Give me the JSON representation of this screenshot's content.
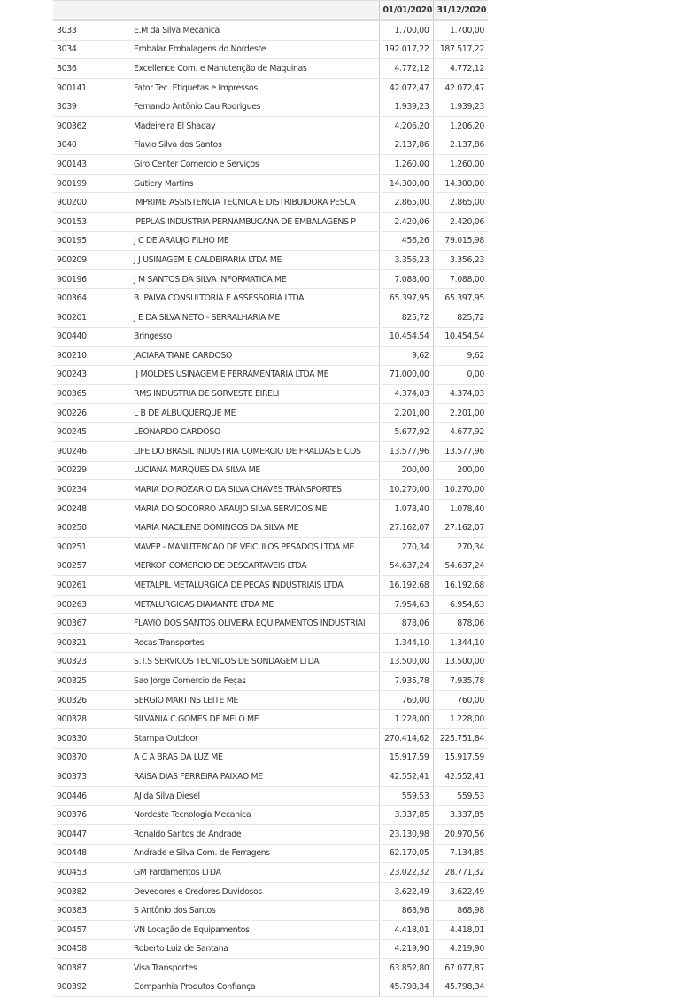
{
  "table": {
    "headers": [
      "",
      "",
      "01/01/2020",
      "31/12/2020"
    ],
    "rows": [
      [
        "3033",
        "E.M da Silva Mecanica",
        "1.700,00",
        "1.700,00"
      ],
      [
        "3034",
        "Embalar Embalagens do Nordeste",
        "192.017,22",
        "187.517,22"
      ],
      [
        "3036",
        "Excellence Com. e Manutenção de Maquinas",
        "4.772,12",
        "4.772,12"
      ],
      [
        "900141",
        "Fator Tec. Etiquetas e Impressos",
        "42.072,47",
        "42.072,47"
      ],
      [
        "3039",
        "Fernando Antônio Cau Rodrigues",
        "1.939,23",
        "1.939,23"
      ],
      [
        "900362",
        "Madeireira El Shaday",
        "4.206,20",
        "1.206,20"
      ],
      [
        "3040",
        "Flavio Silva dos Santos",
        "2.137,86",
        "2.137,86"
      ],
      [
        "900143",
        "Giro Center Comercio e Serviços",
        "1.260,00",
        "1.260,00"
      ],
      [
        "900199",
        "Gutiery Martins",
        "14.300,00",
        "14.300,00"
      ],
      [
        "900200",
        "IMPRIME ASSISTENCIA TECNICA E DISTRIBUIDORA PESCA",
        "2.865,00",
        "2.865,00"
      ],
      [
        "900153",
        "IPEPLAS INDUSTRIA PERNAMBUCANA DE EMBALAGENS P",
        "2.420,06",
        "2.420,06"
      ],
      [
        "900195",
        "J C DE ARAUJO FILHO ME",
        "456,26",
        "79.015,98"
      ],
      [
        "900209",
        "J J USINAGEM E CALDEIRARIA LTDA ME",
        "3.356,23",
        "3.356,23"
      ],
      [
        "900196",
        "J M SANTOS DA SILVA INFORMATICA ME",
        "7.088,00",
        "7.088,00"
      ],
      [
        "900364",
        "B. PAIVA CONSULTORIA E ASSESSORIA LTDA",
        "65.397,95",
        "65.397,95"
      ],
      [
        "900201",
        "J E DA SILVA NETO - SERRALHARIA ME",
        "825,72",
        "825,72"
      ],
      [
        "900440",
        "Bringesso",
        "10.454,54",
        "10.454,54"
      ],
      [
        "900210",
        "JACIARA TIANE CARDOSO",
        "9,62",
        "9,62"
      ],
      [
        "900243",
        "JJ MOLDES USINAGEM E FERRAMENTARIA LTDA ME",
        "71.000,00",
        "0,00"
      ],
      [
        "900365",
        "RMS INDUSTRIA DE SORVESTE EIRELI",
        "4.374,03",
        "4.374,03"
      ],
      [
        "900226",
        "L B DE ALBUQUERQUE ME",
        "2.201,00",
        "2.201,00"
      ],
      [
        "900245",
        "LEONARDO CARDOSO",
        "5.677,92",
        "4.677,92"
      ],
      [
        "900246",
        "LIFE DO BRASIL INDUSTRIA COMERCIO DE FRALDAS E COS",
        "13.577,96",
        "13.577,96"
      ],
      [
        "900229",
        "LUCIANA MARQUES DA SILVA ME",
        "200,00",
        "200,00"
      ],
      [
        "900234",
        "MARIA DO ROZARIO DA SILVA CHAVES TRANSPORTES",
        "10.270,00",
        "10.270,00"
      ],
      [
        "900248",
        "MARIA DO SOCORRO ARAUJO SILVA SERVICOS ME",
        "1.078,40",
        "1.078,40"
      ],
      [
        "900250",
        "MARIA MACILENE DOMINGOS DA SILVA ME",
        "27.162,07",
        "27.162,07"
      ],
      [
        "900251",
        "MAVEP - MANUTENCAO DE VEICULOS PESADOS LTDA ME",
        "270,34",
        "270,34"
      ],
      [
        "900257",
        "MERKOP COMERCIO DE DESCARTAVEIS LTDA",
        "54.637,24",
        "54.637,24"
      ],
      [
        "900261",
        "METALPIL METALURGICA DE PECAS INDUSTRIAIS LTDA",
        "16.192,68",
        "16.192,68"
      ],
      [
        "900263",
        "METALURGICAS DIAMANTE LTDA ME",
        "7.954,63",
        "6.954,63"
      ],
      [
        "900367",
        "FLAVIO DOS SANTOS OLIVEIRA EQUIPAMENTOS INDUSTRIAI",
        "878,06",
        "878,06"
      ],
      [
        "900321",
        "Rocas Transportes",
        "1.344,10",
        "1.344,10"
      ],
      [
        "900323",
        "S.T.S SERVICOS TECNICOS DE SONDAGEM LTDA",
        "13.500,00",
        "13.500,00"
      ],
      [
        "900325",
        "Sao Jorge Comercio de Peças",
        "7.935,78",
        "7.935,78"
      ],
      [
        "900326",
        "SERGIO MARTINS LEITE ME",
        "760,00",
        "760,00"
      ],
      [
        "900328",
        "SILVANIA C.GOMES DE MELO ME",
        "1.228,00",
        "1.228,00"
      ],
      [
        "900330",
        "Stampa Outdoor",
        "270.414,62",
        "225.751,84"
      ],
      [
        "900370",
        "A C A BRAS DA LUZ ME",
        "15.917,59",
        "15.917,59"
      ],
      [
        "900373",
        "RAISA DIAS FERREIRA PAIXAO ME",
        "42.552,41",
        "42.552,41"
      ],
      [
        "900446",
        "AJ da Silva Diesel",
        "559,53",
        "559,53"
      ],
      [
        "900376",
        "Nordeste Tecnologia Mecanica",
        "3.337,85",
        "3.337,85"
      ],
      [
        "900447",
        "Ronaldo Santos de Andrade",
        "23.130,98",
        "20.970,56"
      ],
      [
        "900448",
        "Andrade e Silva Com. de Ferragens",
        "62.170,05",
        "7.134,85"
      ],
      [
        "900453",
        "GM Fardamentos LTDA",
        "23.022,32",
        "28.771,32"
      ],
      [
        "900382",
        "Devedores e Credores Duvidosos",
        "3.622,49",
        "3.622,49"
      ],
      [
        "900383",
        "S Antônio dos Santos",
        "868,98",
        "868,98"
      ],
      [
        "900457",
        "VN Locação de Equipamentos",
        "4.418,01",
        "4.418,01"
      ],
      [
        "900458",
        "Roberto Luiz de Santana",
        "4.219,90",
        "4.219,90"
      ],
      [
        "900387",
        "Visa Transportes",
        "63.852,80",
        "67.077,87"
      ],
      [
        "900392",
        "Companhia Produtos Confiança",
        "45.798,34",
        "45.798,34"
      ]
    ]
  }
}
